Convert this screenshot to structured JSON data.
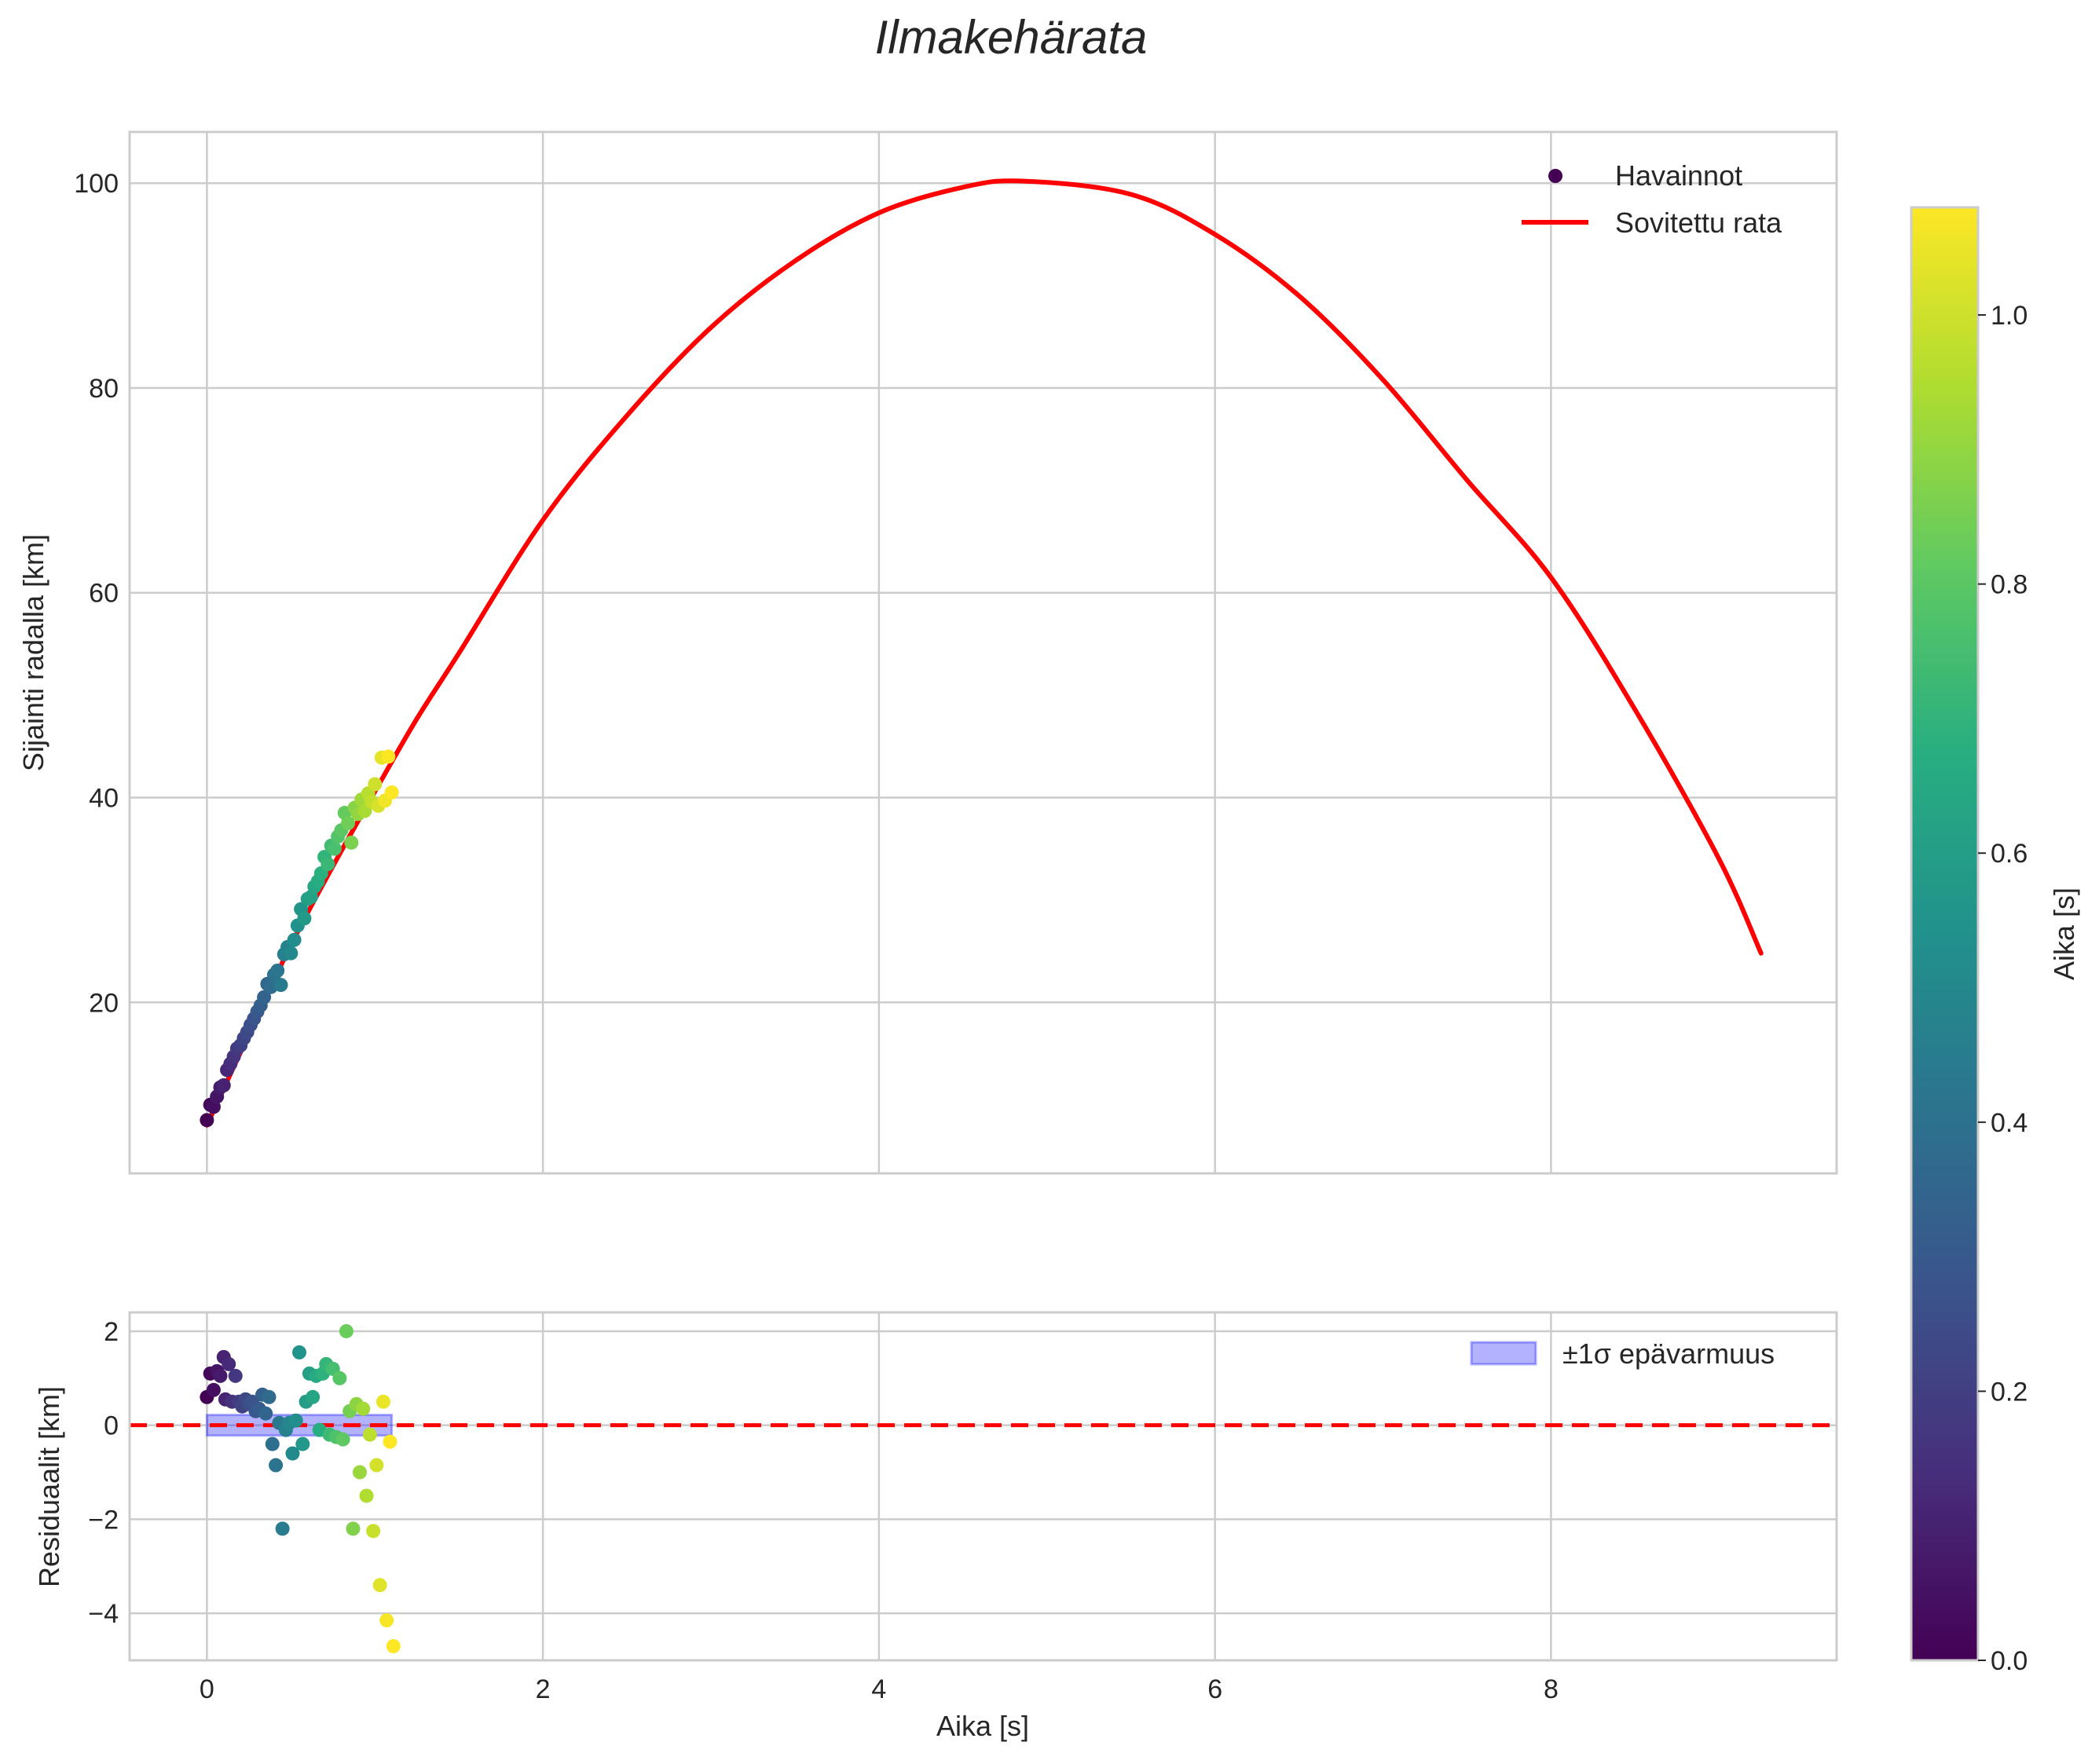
{
  "title": "Ilmakehärata",
  "chart_data": [
    {
      "id": "trajectory",
      "type": "scatter+line",
      "title": "Ilmakehärata",
      "xlabel": "",
      "ylabel": "Sijainti radalla [km]",
      "xlim": [
        -0.46,
        9.7
      ],
      "ylim": [
        3.3,
        105
      ],
      "xticks": [
        0,
        2,
        4,
        6,
        8
      ],
      "yticks": [
        20,
        40,
        60,
        80,
        100
      ],
      "ytick_labels": [
        "20",
        "40",
        "60",
        "80",
        "100"
      ],
      "grid": true,
      "legend_position": "upper right",
      "legend": [
        {
          "label": "Havainnot",
          "kind": "marker",
          "color": "#440154"
        },
        {
          "label": "Sovitettu rata",
          "kind": "line",
          "color": "#ff0000"
        }
      ],
      "fit": {
        "name": "Sovitettu rata",
        "color": "#ff0000",
        "t_range": [
          0,
          9.25
        ],
        "x": [
          0,
          0.25,
          0.5,
          0.75,
          1,
          1.25,
          1.5,
          2,
          2.5,
          3,
          3.5,
          4,
          4.5,
          4.86,
          5.5,
          6,
          6.5,
          7,
          7.5,
          8,
          8.5,
          9,
          9.25
        ],
        "y": [
          8,
          16.9,
          25.6,
          33.3,
          40.6,
          47.7,
          54.1,
          67.1,
          77.3,
          85.9,
          92.4,
          97.1,
          99.6,
          100.2,
          98.9,
          95.0,
          89.0,
          80.8,
          71.0,
          61.5,
          48.6,
          34.0,
          24.8
        ]
      },
      "observations": {
        "name": "Havainnot",
        "colormap": "viridis",
        "points": [
          {
            "t": 0.0,
            "y": 8.5
          },
          {
            "t": 0.02,
            "y": 10.0
          },
          {
            "t": 0.04,
            "y": 9.8
          },
          {
            "t": 0.06,
            "y": 10.8
          },
          {
            "t": 0.08,
            "y": 11.7
          },
          {
            "t": 0.1,
            "y": 11.9
          },
          {
            "t": 0.12,
            "y": 13.4
          },
          {
            "t": 0.14,
            "y": 14.0
          },
          {
            "t": 0.16,
            "y": 14.7
          },
          {
            "t": 0.18,
            "y": 15.5
          },
          {
            "t": 0.2,
            "y": 15.8
          },
          {
            "t": 0.22,
            "y": 16.5
          },
          {
            "t": 0.24,
            "y": 17.1
          },
          {
            "t": 0.26,
            "y": 17.8
          },
          {
            "t": 0.28,
            "y": 18.4
          },
          {
            "t": 0.3,
            "y": 19.1
          },
          {
            "t": 0.32,
            "y": 19.7
          },
          {
            "t": 0.34,
            "y": 20.5
          },
          {
            "t": 0.36,
            "y": 21.8
          },
          {
            "t": 0.38,
            "y": 21.5
          },
          {
            "t": 0.4,
            "y": 22.7
          },
          {
            "t": 0.42,
            "y": 23.1
          },
          {
            "t": 0.44,
            "y": 21.7
          },
          {
            "t": 0.46,
            "y": 24.7
          },
          {
            "t": 0.48,
            "y": 25.4
          },
          {
            "t": 0.5,
            "y": 24.8
          },
          {
            "t": 0.52,
            "y": 26.1
          },
          {
            "t": 0.54,
            "y": 27.5
          },
          {
            "t": 0.56,
            "y": 29.1
          },
          {
            "t": 0.58,
            "y": 28.2
          },
          {
            "t": 0.6,
            "y": 30.1
          },
          {
            "t": 0.62,
            "y": 30.3
          },
          {
            "t": 0.64,
            "y": 31.3
          },
          {
            "t": 0.66,
            "y": 31.8
          },
          {
            "t": 0.68,
            "y": 32.6
          },
          {
            "t": 0.7,
            "y": 34.2
          },
          {
            "t": 0.72,
            "y": 33.5
          },
          {
            "t": 0.74,
            "y": 35.3
          },
          {
            "t": 0.76,
            "y": 35.0
          },
          {
            "t": 0.78,
            "y": 36.2
          },
          {
            "t": 0.8,
            "y": 36.8
          },
          {
            "t": 0.82,
            "y": 38.5
          },
          {
            "t": 0.84,
            "y": 37.5
          },
          {
            "t": 0.86,
            "y": 35.6
          },
          {
            "t": 0.88,
            "y": 39.0
          },
          {
            "t": 0.9,
            "y": 38.4
          },
          {
            "t": 0.92,
            "y": 39.8
          },
          {
            "t": 0.94,
            "y": 38.7
          },
          {
            "t": 0.96,
            "y": 40.4
          },
          {
            "t": 0.98,
            "y": 39.6
          },
          {
            "t": 1.0,
            "y": 41.3
          },
          {
            "t": 1.02,
            "y": 39.2
          },
          {
            "t": 1.04,
            "y": 43.9
          },
          {
            "t": 1.06,
            "y": 39.7
          },
          {
            "t": 1.08,
            "y": 44.0
          },
          {
            "t": 1.1,
            "y": 40.5
          }
        ]
      }
    },
    {
      "id": "residuals",
      "type": "scatter",
      "xlabel": "Aika [s]",
      "ylabel": "Residuaalit [km]",
      "xlim": [
        -0.46,
        9.7
      ],
      "ylim": [
        -5.0,
        2.4
      ],
      "xticks": [
        0,
        2,
        4,
        6,
        8
      ],
      "xtick_labels": [
        "0",
        "2",
        "4",
        "6",
        "8"
      ],
      "yticks": [
        -4,
        -2,
        0,
        2
      ],
      "ytick_labels": [
        "−4",
        "−2",
        "0",
        "2"
      ],
      "grid": true,
      "reference_line": {
        "y": 0,
        "style": "dashed",
        "color": "#ff0000"
      },
      "uncertainty_band": {
        "label": "±1σ epävarmuus",
        "sigma": 0.22,
        "t_range": [
          0,
          1.1
        ],
        "color": "#0000ff",
        "alpha": 0.3
      },
      "legend_position": "upper right",
      "legend": [
        {
          "label": "±1σ epävarmuus",
          "kind": "patch",
          "color": "#b3b3ff"
        }
      ],
      "points": [
        {
          "t": 0.0,
          "r": 0.6
        },
        {
          "t": 0.02,
          "r": 1.1
        },
        {
          "t": 0.04,
          "r": 0.75
        },
        {
          "t": 0.06,
          "r": 1.15
        },
        {
          "t": 0.08,
          "r": 1.05
        },
        {
          "t": 0.1,
          "r": 1.45
        },
        {
          "t": 0.11,
          "r": 0.55
        },
        {
          "t": 0.13,
          "r": 1.3
        },
        {
          "t": 0.15,
          "r": 0.5
        },
        {
          "t": 0.17,
          "r": 1.05
        },
        {
          "t": 0.19,
          "r": 0.5
        },
        {
          "t": 0.21,
          "r": 0.4
        },
        {
          "t": 0.23,
          "r": 0.55
        },
        {
          "t": 0.25,
          "r": 0.45
        },
        {
          "t": 0.27,
          "r": 0.5
        },
        {
          "t": 0.29,
          "r": 0.3
        },
        {
          "t": 0.31,
          "r": 0.35
        },
        {
          "t": 0.33,
          "r": 0.65
        },
        {
          "t": 0.35,
          "r": 0.25
        },
        {
          "t": 0.37,
          "r": 0.6
        },
        {
          "t": 0.39,
          "r": -0.4
        },
        {
          "t": 0.41,
          "r": -0.85
        },
        {
          "t": 0.43,
          "r": 0.05
        },
        {
          "t": 0.45,
          "r": -2.2
        },
        {
          "t": 0.47,
          "r": -0.1
        },
        {
          "t": 0.49,
          "r": 0.05
        },
        {
          "t": 0.51,
          "r": -0.6
        },
        {
          "t": 0.53,
          "r": 0.1
        },
        {
          "t": 0.55,
          "r": 1.55
        },
        {
          "t": 0.57,
          "r": -0.4
        },
        {
          "t": 0.59,
          "r": 0.5
        },
        {
          "t": 0.61,
          "r": 1.1
        },
        {
          "t": 0.63,
          "r": 0.6
        },
        {
          "t": 0.65,
          "r": 1.05
        },
        {
          "t": 0.67,
          "r": -0.1
        },
        {
          "t": 0.69,
          "r": 1.1
        },
        {
          "t": 0.71,
          "r": 1.3
        },
        {
          "t": 0.73,
          "r": -0.2
        },
        {
          "t": 0.75,
          "r": 1.2
        },
        {
          "t": 0.77,
          "r": -0.25
        },
        {
          "t": 0.79,
          "r": 1.0
        },
        {
          "t": 0.81,
          "r": -0.3
        },
        {
          "t": 0.83,
          "r": 2.0
        },
        {
          "t": 0.85,
          "r": 0.3
        },
        {
          "t": 0.87,
          "r": -2.2
        },
        {
          "t": 0.89,
          "r": 0.45
        },
        {
          "t": 0.91,
          "r": -1.0
        },
        {
          "t": 0.93,
          "r": 0.35
        },
        {
          "t": 0.95,
          "r": -1.5
        },
        {
          "t": 0.97,
          "r": -0.2
        },
        {
          "t": 0.99,
          "r": -2.25
        },
        {
          "t": 1.01,
          "r": -0.85
        },
        {
          "t": 1.03,
          "r": -3.4
        },
        {
          "t": 1.05,
          "r": 0.5
        },
        {
          "t": 1.07,
          "r": -4.15
        },
        {
          "t": 1.09,
          "r": -0.35
        },
        {
          "t": 1.11,
          "r": -4.7
        }
      ]
    },
    {
      "id": "colorbar",
      "type": "colorbar",
      "label": "Aika [s]",
      "colormap": "viridis",
      "range": [
        0.0,
        1.08
      ],
      "ticks": [
        0.0,
        0.2,
        0.4,
        0.6,
        0.8,
        1.0
      ],
      "tick_labels": [
        "0.0",
        "0.2",
        "0.4",
        "0.6",
        "0.8",
        "1.0"
      ]
    }
  ]
}
